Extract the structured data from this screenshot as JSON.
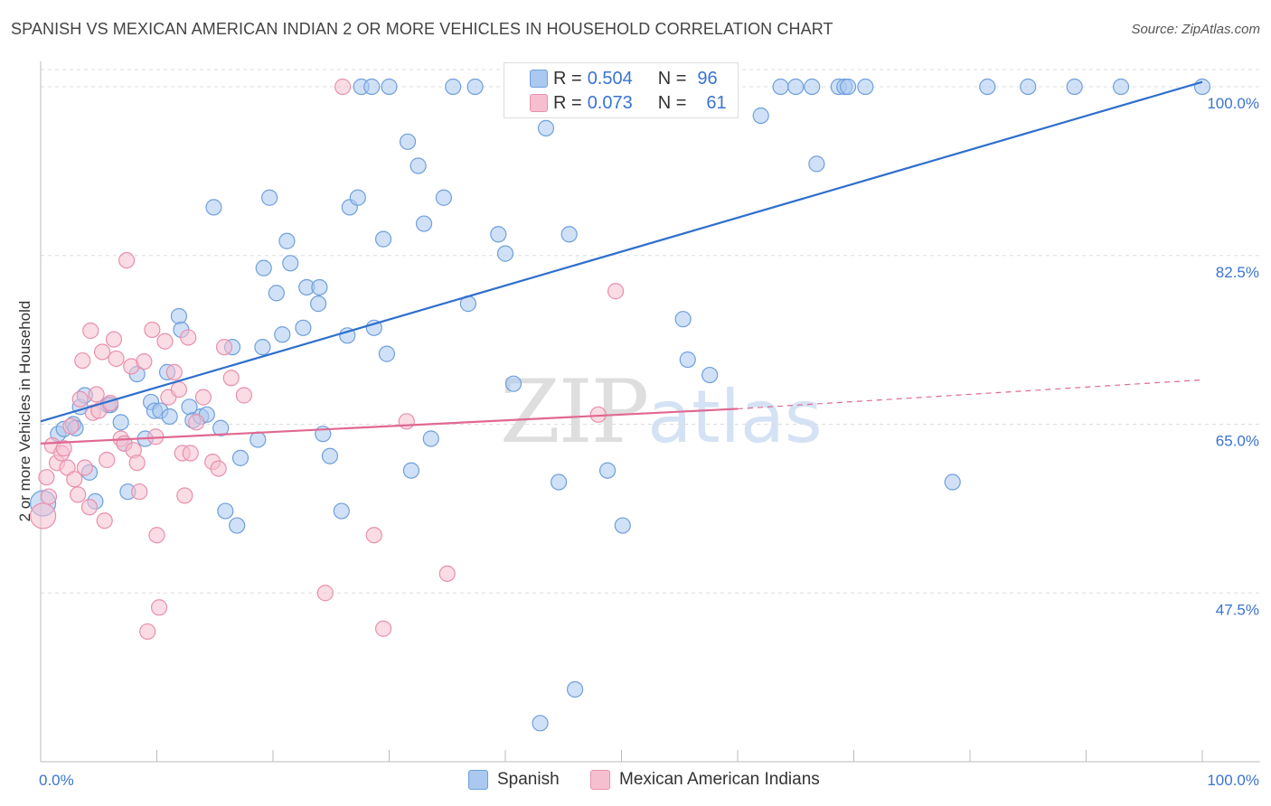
{
  "title": "SPANISH VS MEXICAN AMERICAN INDIAN 2 OR MORE VEHICLES IN HOUSEHOLD CORRELATION CHART",
  "source": "Source: ZipAtlas.com",
  "watermark": {
    "zip": "ZIP",
    "atlas": "atlas"
  },
  "colors": {
    "spanish_fill": "#aac8f0",
    "spanish_stroke": "#6f9fdc",
    "spanish_line": "#2f6fcc",
    "mai_fill": "#f6bfd0",
    "mai_stroke": "#e890ac",
    "mai_line": "#e06890",
    "axis_text": "#3b73d0",
    "grid": "#dddddd"
  },
  "legend_corr": [
    {
      "r_label": "R = ",
      "r_value": "0.504",
      "n_label": "N = ",
      "n_value": "96"
    },
    {
      "r_label": "R = ",
      "r_value": "0.073",
      "n_label": "N = ",
      "n_value": "61"
    }
  ],
  "chart_data": {
    "type": "scatter",
    "title": "SPANISH VS MEXICAN AMERICAN INDIAN 2 OR MORE VEHICLES IN HOUSEHOLD CORRELATION CHART",
    "xlabel": "",
    "ylabel": "2 or more Vehicles in Household",
    "xlim": [
      0,
      100
    ],
    "ylim": [
      30,
      101.5
    ],
    "x_tick_labels": [
      "0.0%",
      "100.0%"
    ],
    "y_ticks": [
      47.5,
      65.0,
      82.5,
      100.0
    ],
    "y_tick_labels": [
      "47.5%",
      "65.0%",
      "82.5%",
      "100.0%"
    ],
    "grid": true,
    "legend": [
      "Spanish",
      "Mexican American Indians"
    ],
    "series": [
      {
        "name": "Spanish",
        "r": 0.504,
        "n": 96,
        "trend": {
          "x": [
            0,
            100
          ],
          "y": [
            65.3,
            100.5
          ],
          "style": "solid"
        },
        "points": [
          [
            0.2,
            56.8
          ],
          [
            1.5,
            64.0
          ],
          [
            2.0,
            64.5
          ],
          [
            2.8,
            65.0
          ],
          [
            3.0,
            64.6
          ],
          [
            3.4,
            66.8
          ],
          [
            3.8,
            68.0
          ],
          [
            4.2,
            60.0
          ],
          [
            4.7,
            57.0
          ],
          [
            5.8,
            67.0
          ],
          [
            6.0,
            67.0
          ],
          [
            6.9,
            65.2
          ],
          [
            7.2,
            63.0
          ],
          [
            7.5,
            58.0
          ],
          [
            8.3,
            70.2
          ],
          [
            9.0,
            63.5
          ],
          [
            9.5,
            67.3
          ],
          [
            9.8,
            66.4
          ],
          [
            10.3,
            66.4
          ],
          [
            10.9,
            70.4
          ],
          [
            11.1,
            65.8
          ],
          [
            11.9,
            76.2
          ],
          [
            12.1,
            74.8
          ],
          [
            12.8,
            66.8
          ],
          [
            13.1,
            65.4
          ],
          [
            13.8,
            65.8
          ],
          [
            14.3,
            66.0
          ],
          [
            14.9,
            87.5
          ],
          [
            15.5,
            64.6
          ],
          [
            15.9,
            56.0
          ],
          [
            16.5,
            73.0
          ],
          [
            16.9,
            54.5
          ],
          [
            17.2,
            61.5
          ],
          [
            18.7,
            63.4
          ],
          [
            19.1,
            73.0
          ],
          [
            19.2,
            81.2
          ],
          [
            19.7,
            88.5
          ],
          [
            20.3,
            78.6
          ],
          [
            20.8,
            74.3
          ],
          [
            21.2,
            84.0
          ],
          [
            21.5,
            81.7
          ],
          [
            22.6,
            75.0
          ],
          [
            22.9,
            79.2
          ],
          [
            23.9,
            77.5
          ],
          [
            24.0,
            79.2
          ],
          [
            24.3,
            64.0
          ],
          [
            24.9,
            61.7
          ],
          [
            25.9,
            56.0
          ],
          [
            26.4,
            74.2
          ],
          [
            26.6,
            87.5
          ],
          [
            27.3,
            88.5
          ],
          [
            27.6,
            100.0
          ],
          [
            28.5,
            100.0
          ],
          [
            28.7,
            75.0
          ],
          [
            29.5,
            84.2
          ],
          [
            29.8,
            72.3
          ],
          [
            30.0,
            100.0
          ],
          [
            31.6,
            94.3
          ],
          [
            31.9,
            60.2
          ],
          [
            32.5,
            91.8
          ],
          [
            33.0,
            85.8
          ],
          [
            33.6,
            63.5
          ],
          [
            34.7,
            88.5
          ],
          [
            35.5,
            100.0
          ],
          [
            37.4,
            100.0
          ],
          [
            36.8,
            77.5
          ],
          [
            39.4,
            84.7
          ],
          [
            40.0,
            82.7
          ],
          [
            40.7,
            69.2
          ],
          [
            43.5,
            95.7
          ],
          [
            44.6,
            59.0
          ],
          [
            45.5,
            84.7
          ],
          [
            46.0,
            37.5
          ],
          [
            48.8,
            60.2
          ],
          [
            50.1,
            54.5
          ],
          [
            53.0,
            100.0
          ],
          [
            55.0,
            100.0
          ],
          [
            55.3,
            75.9
          ],
          [
            55.7,
            71.7
          ],
          [
            57.6,
            70.1
          ],
          [
            62.0,
            97.0
          ],
          [
            63.7,
            100.0
          ],
          [
            65.0,
            100.0
          ],
          [
            66.4,
            100.0
          ],
          [
            66.8,
            92.0
          ],
          [
            68.7,
            100.0
          ],
          [
            69.2,
            100.0
          ],
          [
            69.5,
            100.0
          ],
          [
            71.0,
            100.0
          ],
          [
            78.5,
            59.0
          ],
          [
            81.5,
            100.0
          ],
          [
            85.0,
            100.0
          ],
          [
            89.0,
            100.0
          ],
          [
            93.0,
            100.0
          ],
          [
            100.0,
            100.0
          ],
          [
            43.0,
            34.0
          ]
        ]
      },
      {
        "name": "Mexican American Indians",
        "r": 0.073,
        "n": 61,
        "trend": {
          "x": [
            0,
            60,
            100
          ],
          "y": [
            63.0,
            66.6,
            69.6
          ],
          "solid_to_x": 60,
          "style": "solid-then-dashed"
        },
        "points": [
          [
            0.2,
            55.5
          ],
          [
            0.5,
            59.5
          ],
          [
            0.7,
            57.5
          ],
          [
            1.0,
            62.8
          ],
          [
            1.4,
            61.0
          ],
          [
            1.8,
            62.0
          ],
          [
            2.0,
            62.5
          ],
          [
            2.3,
            60.5
          ],
          [
            2.6,
            64.8
          ],
          [
            2.9,
            59.3
          ],
          [
            3.2,
            57.7
          ],
          [
            3.4,
            67.6
          ],
          [
            3.6,
            71.6
          ],
          [
            3.8,
            60.5
          ],
          [
            4.2,
            56.4
          ],
          [
            4.3,
            74.7
          ],
          [
            4.5,
            66.2
          ],
          [
            4.8,
            68.1
          ],
          [
            5.0,
            66.4
          ],
          [
            5.3,
            72.5
          ],
          [
            5.5,
            55.0
          ],
          [
            5.7,
            61.3
          ],
          [
            6.0,
            67.2
          ],
          [
            6.3,
            73.8
          ],
          [
            6.5,
            71.8
          ],
          [
            6.9,
            63.5
          ],
          [
            7.2,
            63.0
          ],
          [
            7.4,
            82.0
          ],
          [
            7.8,
            71.0
          ],
          [
            8.0,
            62.3
          ],
          [
            8.3,
            61.0
          ],
          [
            8.5,
            58.0
          ],
          [
            8.9,
            71.5
          ],
          [
            9.2,
            43.5
          ],
          [
            9.6,
            74.8
          ],
          [
            9.9,
            63.7
          ],
          [
            10.0,
            53.5
          ],
          [
            10.2,
            46.0
          ],
          [
            10.7,
            73.6
          ],
          [
            11.0,
            67.8
          ],
          [
            11.5,
            70.4
          ],
          [
            11.9,
            68.6
          ],
          [
            12.2,
            62.0
          ],
          [
            12.4,
            57.6
          ],
          [
            12.7,
            74.0
          ],
          [
            12.9,
            62.0
          ],
          [
            13.4,
            65.2
          ],
          [
            14.0,
            67.8
          ],
          [
            14.8,
            61.1
          ],
          [
            15.3,
            60.4
          ],
          [
            15.8,
            73.0
          ],
          [
            16.4,
            69.8
          ],
          [
            17.5,
            68.0
          ],
          [
            24.5,
            47.5
          ],
          [
            26.0,
            100.0
          ],
          [
            28.7,
            53.5
          ],
          [
            29.5,
            43.8
          ],
          [
            31.5,
            65.3
          ],
          [
            35.0,
            49.5
          ],
          [
            48.0,
            66.0
          ],
          [
            49.5,
            78.8
          ]
        ]
      }
    ]
  },
  "legend_bottom": [
    {
      "label": "Spanish"
    },
    {
      "label": "Mexican American Indians"
    }
  ]
}
